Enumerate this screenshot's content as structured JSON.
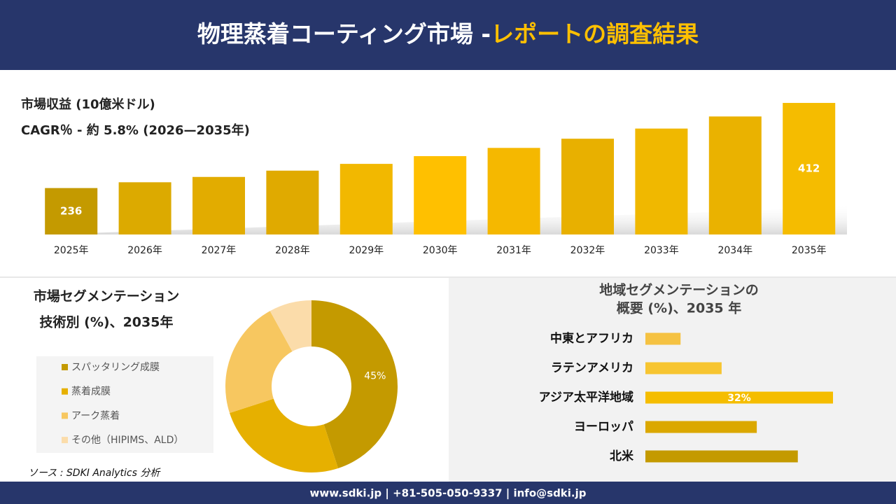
{
  "header": {
    "title": "物理蒸着コーティング市場 -",
    "title_highlight": "レポートの調査結果"
  },
  "chart_data": [
    {
      "type": "bar",
      "title": "市場収益 (10億米ドル)",
      "subtitle": "CAGR％ - 約 5.8% (2026—2035年)",
      "categories": [
        "2025年",
        "2026年",
        "2027年",
        "2028年",
        "2029年",
        "2030年",
        "2031年",
        "2032年",
        "2033年",
        "2034年",
        "2035年"
      ],
      "values": [
        236,
        248,
        259,
        272,
        286,
        302,
        319,
        338,
        359,
        384,
        412
      ],
      "value_labels": [
        "236",
        null,
        null,
        null,
        null,
        null,
        null,
        null,
        null,
        null,
        "412"
      ],
      "colors": [
        "#c49a00",
        "#dcaa00",
        "#e2ac00",
        "#e0aa00",
        "#f2b800",
        "#ffc000",
        "#f5b800",
        "#e8b000",
        "#f0b800",
        "#eab200",
        "#f5bc00"
      ],
      "ylim": [
        140,
        420
      ]
    },
    {
      "type": "donut",
      "title": "市場セグメンテーション",
      "subtitle": "技術別 (%)、2035年",
      "categories": [
        "スパッタリング成膜",
        "蒸着成膜",
        "アーク蒸着",
        "その他（HIPIMS、ALD）"
      ],
      "values": [
        45,
        25,
        22,
        8
      ],
      "value_labels": [
        "45%",
        null,
        null,
        null
      ],
      "colors": [
        "#c49a00",
        "#e6b000",
        "#f7c760",
        "#fbdcaa"
      ]
    },
    {
      "type": "barh",
      "title": "地域セグメンテーションの",
      "subtitle": "概要 (%)、2035 年",
      "categories": [
        "中東とアフリカ",
        "ラテンアメリカ",
        "アジア太平洋地域",
        "ヨーロッパ",
        "北米"
      ],
      "values": [
        6,
        13,
        32,
        19,
        26
      ],
      "value_labels": [
        null,
        null,
        "32%",
        null,
        null
      ],
      "colors": [
        "#f5c242",
        "#f7c531",
        "#f5bd00",
        "#dba800",
        "#c49a00"
      ],
      "xlim": [
        0,
        32
      ]
    }
  ],
  "source": "ソース : SDKI Analytics 分析",
  "footer": "www.sdki.jp | +81-505-050-9337 | info@sdki.jp"
}
